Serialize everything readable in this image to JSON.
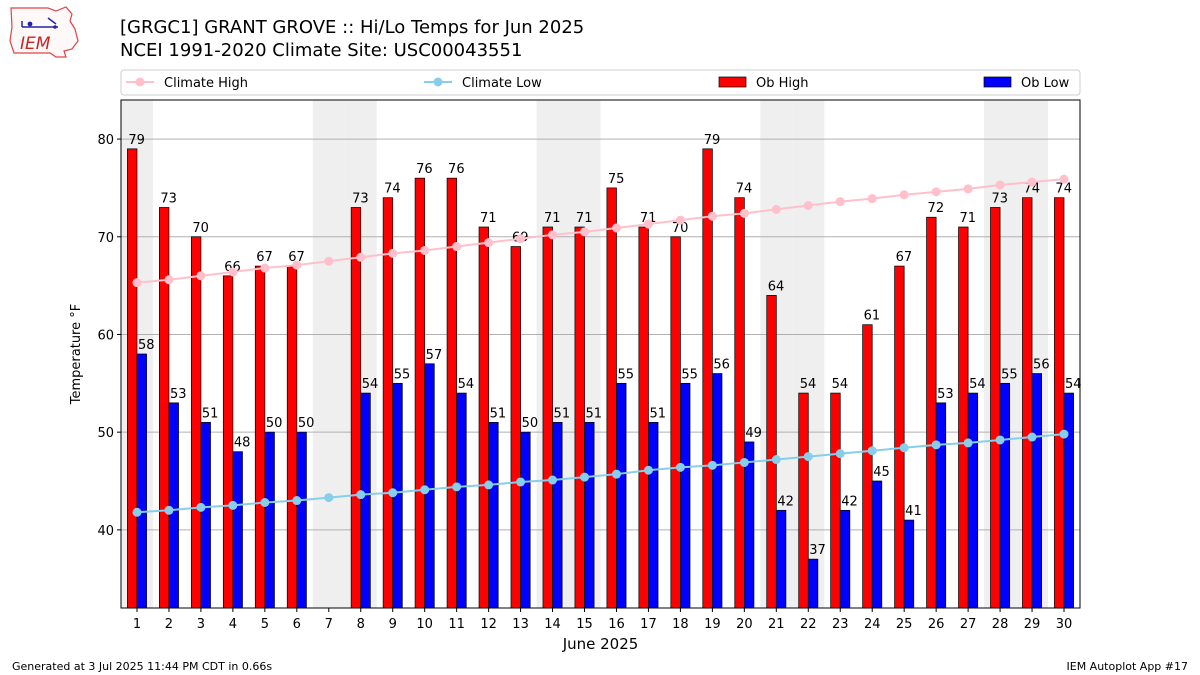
{
  "header": {
    "title_line1": "[GRGC1] GRANT GROVE :: Hi/Lo Temps for Jun 2025",
    "title_line2": "NCEI 1991-2020 Climate Site: USC00043551",
    "logo_text": "IEM"
  },
  "footer": {
    "generated": "Generated at 3 Jul 2025 11:44 PM CDT in 0.66s",
    "app": "IEM Autoplot App #17"
  },
  "colors": {
    "ob_high": "#ff0000",
    "ob_low": "#0000ff",
    "climate_high": "#ffc0cb",
    "climate_low": "#87ceeb",
    "weekend_shade": "#efefef"
  },
  "chart_data": {
    "type": "bar",
    "xlabel": "June 2025",
    "ylabel": "Temperature °F",
    "ylim": [
      32,
      84
    ],
    "yticks": [
      40,
      50,
      60,
      70,
      80
    ],
    "grid": "horizontal",
    "legend_position": "top",
    "categories": [
      "1",
      "2",
      "3",
      "4",
      "5",
      "6",
      "7",
      "8",
      "9",
      "10",
      "11",
      "12",
      "13",
      "14",
      "15",
      "16",
      "17",
      "18",
      "19",
      "20",
      "21",
      "22",
      "23",
      "24",
      "25",
      "26",
      "27",
      "28",
      "29",
      "30"
    ],
    "shaded_days": [
      1,
      7,
      8,
      14,
      15,
      21,
      22,
      28,
      29
    ],
    "series": [
      {
        "name": "Ob High",
        "kind": "bar",
        "values": [
          79,
          73,
          70,
          66,
          67,
          67,
          null,
          73,
          74,
          76,
          76,
          71,
          69,
          71,
          71,
          75,
          71,
          70,
          79,
          74,
          64,
          54,
          54,
          61,
          67,
          72,
          71,
          73,
          74,
          74
        ]
      },
      {
        "name": "Ob Low",
        "kind": "bar",
        "values": [
          58,
          53,
          51,
          48,
          50,
          50,
          null,
          54,
          55,
          57,
          54,
          51,
          50,
          51,
          51,
          55,
          51,
          55,
          56,
          49,
          42,
          37,
          42,
          45,
          41,
          53,
          54,
          55,
          56,
          54
        ]
      },
      {
        "name": "Climate High",
        "kind": "line",
        "values": [
          65.3,
          65.6,
          66.0,
          66.4,
          66.8,
          67.1,
          67.5,
          67.9,
          68.3,
          68.6,
          69.0,
          69.4,
          69.8,
          70.2,
          70.5,
          70.9,
          71.3,
          71.7,
          72.1,
          72.4,
          72.8,
          73.2,
          73.6,
          73.9,
          74.3,
          74.6,
          74.9,
          75.3,
          75.6,
          75.9
        ]
      },
      {
        "name": "Climate Low",
        "kind": "line",
        "values": [
          41.8,
          42.0,
          42.3,
          42.5,
          42.8,
          43.0,
          43.3,
          43.6,
          43.8,
          44.1,
          44.4,
          44.6,
          44.9,
          45.1,
          45.4,
          45.7,
          46.1,
          46.4,
          46.6,
          46.9,
          47.2,
          47.5,
          47.8,
          48.1,
          48.4,
          48.7,
          48.9,
          49.2,
          49.5,
          49.8
        ]
      }
    ]
  }
}
